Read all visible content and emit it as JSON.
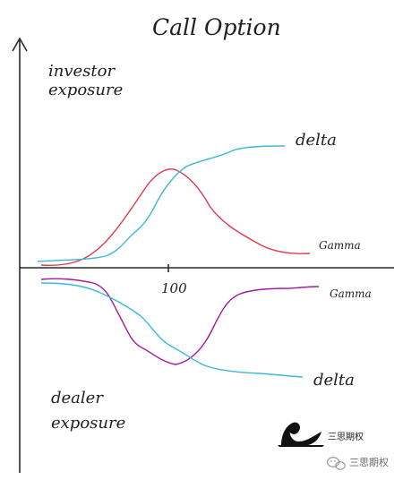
{
  "title": "Call Option",
  "y_axis_label_top": [
    "investor",
    "exposure"
  ],
  "y_axis_label_bottom": [
    "dealer",
    "exposure"
  ],
  "x_tick_label": "100",
  "series": {
    "investor_delta": {
      "label": "delta",
      "color": "#3ab8d8"
    },
    "investor_gamma": {
      "label": "Gamma",
      "color": "#e23a4c"
    },
    "dealer_gamma": {
      "label": "Gamma",
      "color": "#a11b9a"
    },
    "dealer_delta": {
      "label": "delta",
      "color": "#3ab8d8"
    }
  },
  "axis_color": "#2a2a2a",
  "logo": {
    "name": "三思期权",
    "icon": "black-swan-logo"
  },
  "watermark": {
    "text": "三思期权",
    "icon": "wechat-icon"
  }
}
